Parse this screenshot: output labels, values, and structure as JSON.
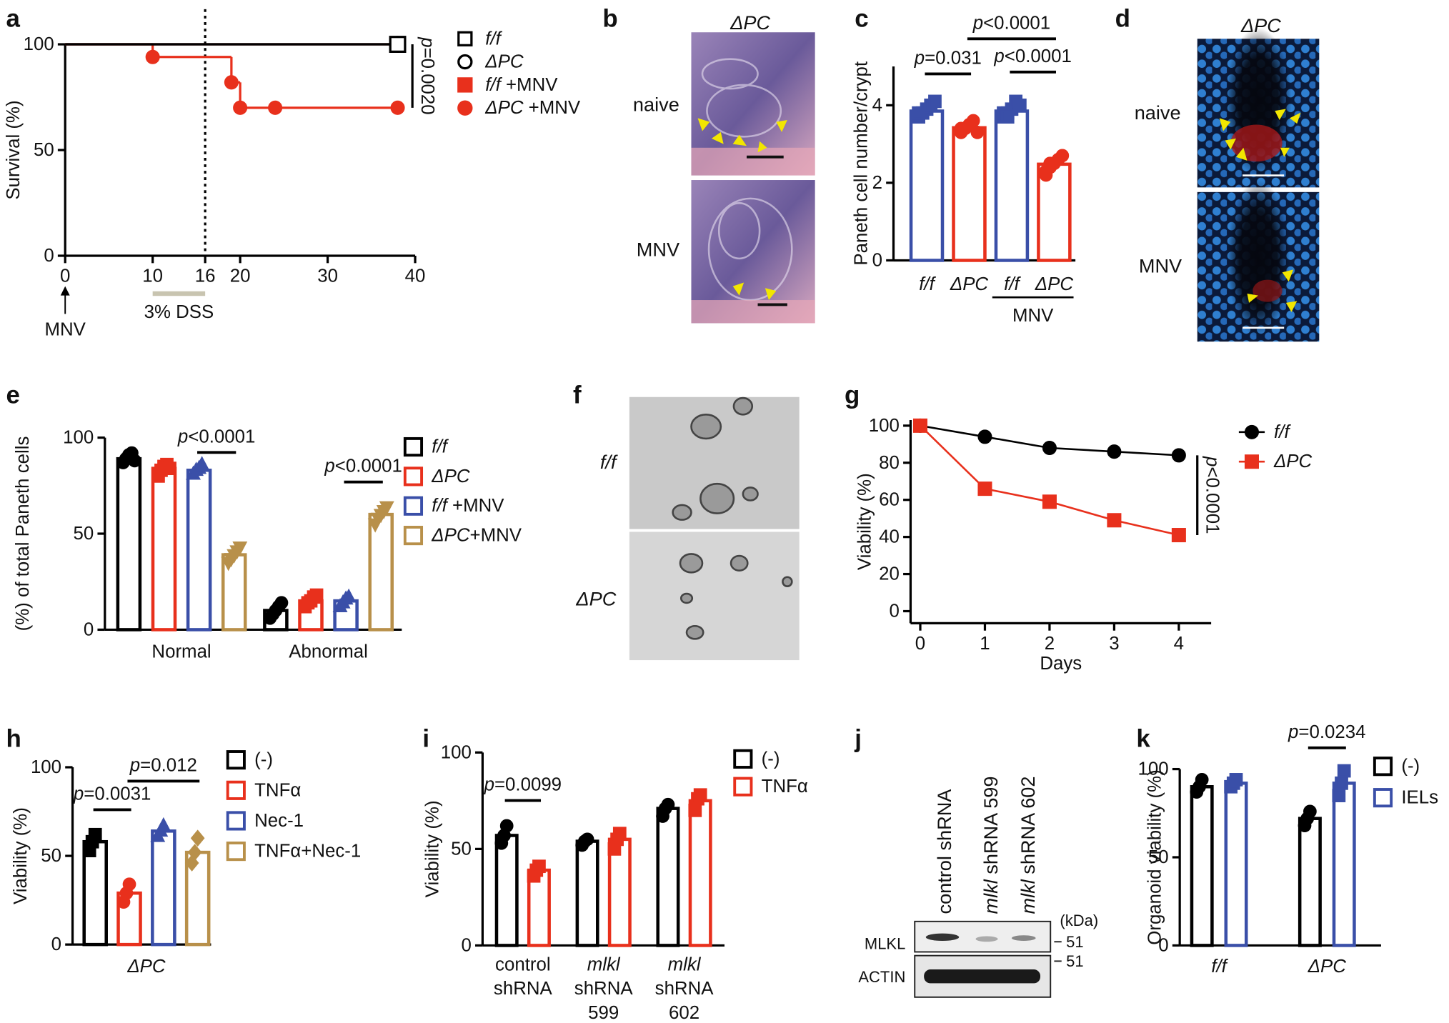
{
  "panel_labels": [
    "a",
    "b",
    "c",
    "d",
    "e",
    "f",
    "g",
    "h",
    "i",
    "j",
    "k"
  ],
  "images": {
    "b": {
      "title": "ΔPC",
      "rows": [
        "naive",
        "MNV"
      ]
    },
    "d": {
      "title": "ΔPC",
      "rows": [
        "naive",
        "MNV"
      ]
    },
    "f": {
      "rows": [
        "f/f",
        "ΔPC"
      ]
    },
    "j": {
      "lanes": [
        [
          "control shRNA"
        ],
        [
          "mlkl",
          " shRNA 599"
        ],
        [
          "mlkl",
          " shRNA 602"
        ]
      ],
      "unit": "(kDa)",
      "size_markers": [
        "51",
        "51"
      ],
      "bands": [
        "MLKL",
        "ACTIN"
      ]
    }
  },
  "chart_data": [
    {
      "type": "survival",
      "ylabel": "Survival (%)",
      "xlim": [
        0,
        40
      ],
      "ylim": [
        0,
        100
      ],
      "xticks": [
        0,
        10,
        16,
        20,
        30,
        40
      ],
      "yticks": [
        0,
        50,
        100
      ],
      "vline": 16,
      "infection_label": "MNV",
      "treatment_label": "3% DSS",
      "treatment_range": [
        10,
        16
      ],
      "p_value": "p=0.0020",
      "series": [
        {
          "name": "f/f",
          "color": "#000000",
          "marker": "square",
          "filled": false,
          "x": [
            38
          ],
          "values": [
            100
          ]
        },
        {
          "name": "ΔPC",
          "color": "#000000",
          "marker": "circle",
          "filled": false,
          "x": [
            38
          ],
          "values": [
            100
          ]
        },
        {
          "name": "f/f +MNV",
          "color": "#e8301c",
          "marker": "square",
          "filled": true,
          "x": [
            38
          ],
          "values": [
            100
          ]
        },
        {
          "name": "ΔPC +MNV",
          "color": "#e8301c",
          "marker": "circle",
          "filled": true,
          "x": [
            10,
            19,
            20,
            24,
            38
          ],
          "values": [
            94,
            82,
            70,
            70,
            70
          ]
        }
      ]
    },
    {
      "type": "bar",
      "ylabel": "Paneth cell number/crypt",
      "ylim": [
        0,
        5
      ],
      "yticks": [
        0,
        2,
        4
      ],
      "categories": [
        "f/f",
        "ΔPC",
        "f/f",
        "ΔPC"
      ],
      "italic_categories": true,
      "group": {
        "label": "MNV",
        "categories": [
          2,
          3
        ]
      },
      "series": [
        {
          "color": "#3a4fa8",
          "marker": "square",
          "values": [
            3.85,
            null,
            3.85,
            null
          ],
          "points": [
            [
              3.7,
              3.8,
              3.9,
              4.0,
              4.1,
              3.8
            ],
            null,
            [
              3.7,
              3.8,
              3.9,
              4.1,
              4.0,
              3.8,
              3.7
            ],
            null
          ]
        },
        {
          "color": "#e8301c",
          "marker": "circle",
          "values": [
            null,
            3.42,
            null,
            2.48
          ],
          "points": [
            null,
            [
              3.3,
              3.4,
              3.5,
              3.6,
              3.3,
              3.4
            ],
            null,
            [
              2.2,
              2.4,
              2.5,
              2.6,
              2.7,
              2.3,
              2.5
            ]
          ]
        }
      ],
      "brackets": [
        {
          "label": "p=0.031",
          "between": [
            [
              0,
              0
            ],
            [
              1,
              1
            ]
          ]
        },
        {
          "label": "p<0.0001",
          "between": [
            [
              1,
              1
            ],
            [
              3,
              1
            ]
          ]
        },
        {
          "label": "p<0.0001",
          "between": [
            [
              2,
              0
            ],
            [
              3,
              1
            ]
          ]
        }
      ]
    },
    {
      "type": "bar",
      "ylabel": "(%) of total Paneth cells",
      "ylim": [
        0,
        100
      ],
      "yticks": [
        0,
        50,
        100
      ],
      "categories": [
        "Normal",
        "Abnormal"
      ],
      "legend_italic": true,
      "series": [
        {
          "name": "f/f",
          "color": "#000000",
          "marker": "circle",
          "values": [
            89,
            10
          ],
          "points": [
            [
              87,
              89,
              91,
              92,
              88
            ],
            [
              6,
              8,
              10,
              12,
              14
            ]
          ]
        },
        {
          "name": "ΔPC",
          "color": "#e8301c",
          "marker": "square",
          "values": [
            84,
            15
          ],
          "points": [
            [
              80,
              83,
              85,
              86,
              84
            ],
            [
              12,
              14,
              15,
              17,
              18
            ]
          ]
        },
        {
          "name": "f/f +MNV",
          "color": "#3a4fa8",
          "marker": "triangle",
          "values": [
            83,
            15
          ],
          "points": [
            [
              81,
              83,
              84,
              86
            ],
            [
              12,
              14,
              16,
              17
            ]
          ]
        },
        {
          "name": "ΔPC+MNV",
          "color": "#b8904a",
          "marker": "down",
          "values": [
            39,
            60
          ],
          "points": [
            [
              35,
              37,
              39,
              41,
              43
            ],
            [
              55,
              58,
              60,
              62,
              64
            ]
          ]
        }
      ],
      "brackets": [
        {
          "label": "p<0.0001",
          "between": [
            [
              0,
              2
            ],
            [
              0,
              3
            ]
          ]
        },
        {
          "label": "p<0.0001",
          "between": [
            [
              1,
              2
            ],
            [
              1,
              3
            ]
          ]
        }
      ]
    },
    {
      "type": "line",
      "xlabel": "Days",
      "ylabel": "Viability (%)",
      "x": [
        0,
        1,
        2,
        3,
        4
      ],
      "xlim": [
        -0.15,
        4.5
      ],
      "ylim": [
        -6.5,
        103
      ],
      "xticks": [
        0,
        1,
        2,
        3,
        4
      ],
      "yticks": [
        0,
        20,
        40,
        60,
        80,
        100
      ],
      "p_value": "p<0.0001",
      "p_range": [
        84,
        41
      ],
      "series": [
        {
          "name": "f/f",
          "color": "#000000",
          "marker": "circle",
          "values": [
            100,
            94,
            88,
            86,
            84
          ]
        },
        {
          "name": "ΔPC",
          "color": "#e8301c",
          "marker": "square",
          "values": [
            100,
            66,
            59,
            49,
            41
          ]
        }
      ]
    },
    {
      "type": "bar",
      "ylabel": "Viability (%)",
      "ylim": [
        0,
        100
      ],
      "yticks": [
        0,
        50,
        100
      ],
      "categories": [
        "ΔPC"
      ],
      "italic_categories": true,
      "series": [
        {
          "name": "(-)",
          "color": "#000000",
          "marker": "square",
          "values": [
            58
          ],
          "points": [
            [
              53,
              58,
              62
            ]
          ]
        },
        {
          "name": "TNFα",
          "color": "#e8301c",
          "marker": "circle",
          "values": [
            29
          ],
          "points": [
            [
              24,
              29,
              34
            ]
          ]
        },
        {
          "name": "Nec-1",
          "color": "#3a4fa8",
          "marker": "triangle",
          "values": [
            64
          ],
          "points": [
            [
              61,
              64,
              67
            ]
          ]
        },
        {
          "name": "TNFα+Nec-1",
          "color": "#b8904a",
          "marker": "diamond",
          "values": [
            52
          ],
          "points": [
            [
              46,
              52,
              60
            ]
          ]
        }
      ],
      "brackets": [
        {
          "label": "p=0.0031",
          "between": [
            [
              0,
              0
            ],
            [
              0,
              1
            ]
          ]
        },
        {
          "label": "p=0.012",
          "between": [
            [
              0,
              1
            ],
            [
              0,
              3
            ]
          ]
        }
      ]
    },
    {
      "type": "bar",
      "ylabel": "Viability (%)",
      "ylim": [
        0,
        100
      ],
      "yticks": [
        0,
        50,
        100
      ],
      "categories": [
        [
          "control",
          "shRNA"
        ],
        [
          "mlkl",
          "shRNA",
          "599"
        ],
        [
          "mlkl",
          "shRNA",
          "602"
        ]
      ],
      "category_italic": [
        false,
        true,
        true
      ],
      "series": [
        {
          "name": "(-)",
          "color": "#000000",
          "marker": "circle",
          "values": [
            57,
            54,
            71
          ],
          "points": [
            [
              53,
              57,
              62
            ],
            [
              52,
              54,
              55
            ],
            [
              67,
              71,
              73
            ]
          ]
        },
        {
          "name": "TNFα",
          "color": "#e8301c",
          "marker": "square",
          "values": [
            39,
            55,
            75
          ],
          "points": [
            [
              36,
              39,
              41
            ],
            [
              50,
              55,
              58
            ],
            [
              70,
              76,
              78
            ]
          ]
        }
      ],
      "brackets": [
        {
          "label": "p=0.0099",
          "between": [
            [
              0,
              0
            ],
            [
              0,
              1
            ]
          ]
        }
      ]
    },
    {
      "type": "bar",
      "ylabel": "Organoid viability (%)",
      "ylim": [
        0,
        100
      ],
      "yticks": [
        0,
        50,
        100
      ],
      "categories": [
        "f/f",
        "ΔPC"
      ],
      "italic_categories": true,
      "series": [
        {
          "name": "(-)",
          "color": "#000000",
          "marker": "circle",
          "values": [
            90,
            72
          ],
          "points": [
            [
              87,
              90,
              94
            ],
            [
              68,
              72,
              76
            ]
          ]
        },
        {
          "name": "IELs",
          "color": "#3a4fa8",
          "marker": "square",
          "values": [
            92,
            92
          ],
          "points": [
            [
              90,
              92,
              94
            ],
            [
              85,
              92,
              99
            ]
          ]
        }
      ],
      "brackets": [
        {
          "label": "p=0.0234",
          "between": [
            [
              1,
              0
            ],
            [
              1,
              1
            ]
          ]
        }
      ]
    }
  ]
}
